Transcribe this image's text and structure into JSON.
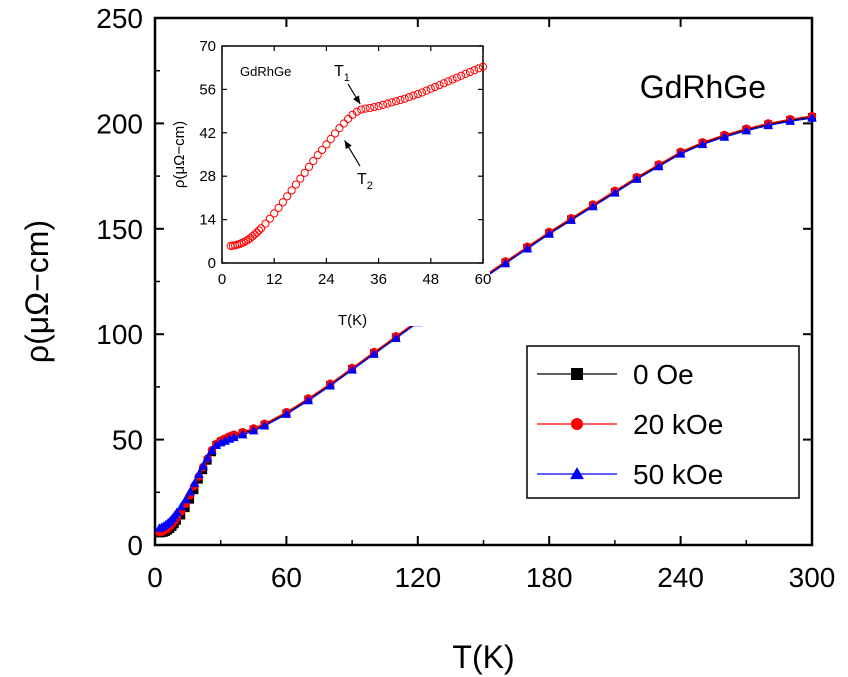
{
  "chart_data": [
    {
      "type": "scatter",
      "annotation": "GdRhGe",
      "xlabel": "T(K)",
      "ylabel": "ρ(μΩ−cm)",
      "xlim": [
        0,
        300
      ],
      "ylim": [
        0,
        250
      ],
      "xticks": [
        0,
        60,
        120,
        180,
        240,
        300
      ],
      "yticks": [
        0,
        50,
        100,
        150,
        200,
        250
      ],
      "grid": false,
      "legend_position": "bottom-right",
      "series": [
        {
          "name": "0 Oe",
          "color": "#000000",
          "marker": "square",
          "x": [
            2,
            3,
            4,
            5,
            6,
            7,
            8,
            9,
            10,
            12,
            14,
            16,
            18,
            20,
            22,
            24,
            26,
            28,
            30,
            31,
            32,
            34,
            36,
            40,
            45,
            50,
            60,
            70,
            80,
            90,
            100,
            110,
            120,
            130,
            140,
            150,
            160,
            170,
            180,
            190,
            200,
            210,
            220,
            230,
            240,
            250,
            260,
            270,
            280,
            290,
            300
          ],
          "y": [
            5.5,
            5.6,
            5.8,
            6.2,
            6.8,
            7.6,
            8.6,
            9.8,
            11.5,
            14,
            17.5,
            21.5,
            26,
            31,
            35.5,
            40,
            44,
            47.5,
            49,
            49.5,
            50,
            51,
            51.8,
            53,
            54.8,
            57,
            62.5,
            69,
            76,
            83.5,
            91,
            98.5,
            106,
            113,
            120,
            127,
            134,
            141,
            148,
            154.5,
            161,
            167.5,
            174,
            180,
            186,
            190.5,
            194,
            197,
            199.5,
            201.5,
            203
          ]
        },
        {
          "name": "20 kOe",
          "color": "#ff0000",
          "marker": "circle",
          "x": [
            2,
            3,
            4,
            5,
            6,
            7,
            8,
            9,
            10,
            12,
            14,
            16,
            18,
            20,
            22,
            24,
            26,
            28,
            30,
            32,
            34,
            36,
            40,
            45,
            50,
            60,
            70,
            80,
            90,
            100,
            110,
            120,
            130,
            140,
            150,
            160,
            170,
            180,
            190,
            200,
            210,
            220,
            230,
            240,
            250,
            260,
            270,
            280,
            290,
            300
          ],
          "y": [
            6,
            6.2,
            6.6,
            7.2,
            8,
            9,
            10.2,
            11.5,
            13,
            16,
            19.5,
            23.5,
            28,
            32.5,
            37,
            41,
            45,
            48,
            49.5,
            50.5,
            51.5,
            52.3,
            53.5,
            55.3,
            57.5,
            63,
            69.5,
            76.5,
            84,
            91.5,
            99,
            106.5,
            113.5,
            120.5,
            127.5,
            134.5,
            141.5,
            148.5,
            155,
            161.5,
            168,
            174.5,
            180.5,
            186.5,
            191,
            194.5,
            197.5,
            200,
            202,
            203.5
          ]
        },
        {
          "name": "50 kOe",
          "color": "#0000ff",
          "marker": "triangle",
          "x": [
            2,
            3,
            4,
            5,
            6,
            7,
            8,
            9,
            10,
            12,
            14,
            16,
            18,
            20,
            22,
            24,
            26,
            28,
            30,
            32,
            34,
            36,
            40,
            45,
            50,
            60,
            70,
            80,
            90,
            100,
            110,
            120,
            130,
            140,
            150,
            160,
            170,
            180,
            190,
            200,
            210,
            220,
            230,
            240,
            250,
            260,
            270,
            280,
            290,
            300
          ],
          "y": [
            8,
            8.4,
            9,
            9.7,
            10.5,
            11.5,
            12.7,
            14,
            15.5,
            18.2,
            21.5,
            25.2,
            29.3,
            33.5,
            37.5,
            41.3,
            44.8,
            47.3,
            48.5,
            49.3,
            50.2,
            51,
            52.3,
            54.2,
            56.5,
            62,
            68.5,
            75.5,
            83,
            90.5,
            98,
            105.5,
            112.5,
            119.5,
            126.5,
            133.5,
            140.5,
            147.5,
            154,
            160.5,
            167,
            173.5,
            179.5,
            185.5,
            190,
            193.5,
            196.5,
            199,
            201,
            202.5
          ]
        }
      ]
    },
    {
      "type": "scatter",
      "annotation": "GdRhGe",
      "xlabel": "T(K)",
      "ylabel": "ρ(μΩ−cm)",
      "xlim": [
        0,
        60
      ],
      "ylim": [
        0,
        70
      ],
      "xticks": [
        0,
        12,
        24,
        36,
        48,
        60
      ],
      "yticks": [
        0,
        14,
        28,
        42,
        56,
        70
      ],
      "grid": false,
      "annotations": [
        {
          "text": "T",
          "subscript": "1",
          "x": 32,
          "y": 50
        },
        {
          "text": "T",
          "subscript": "2",
          "x": 27.5,
          "y": 40.5
        }
      ],
      "series": [
        {
          "color": "#ff0000",
          "marker": "open-circle",
          "x": [
            2,
            2.5,
            3,
            3.5,
            4,
            4.5,
            5,
            5.5,
            6,
            6.5,
            7,
            7.5,
            8,
            8.5,
            9,
            10,
            11,
            12,
            13,
            14,
            15,
            16,
            17,
            18,
            19,
            20,
            21,
            22,
            23,
            24,
            25,
            26,
            27,
            28,
            29,
            30,
            31,
            32,
            33,
            34,
            35,
            36,
            37,
            38,
            39,
            40,
            41,
            42,
            43,
            44,
            45,
            46,
            47,
            48,
            49,
            50,
            51,
            52,
            53,
            54,
            55,
            56,
            57,
            58,
            59,
            60
          ],
          "y": [
            5.5,
            5.6,
            5.7,
            5.9,
            6.1,
            6.4,
            6.7,
            7.1,
            7.5,
            8,
            8.6,
            9.2,
            9.8,
            10.5,
            11.2,
            12.7,
            14.3,
            16,
            17.8,
            19.6,
            21.5,
            23.4,
            25.3,
            27.2,
            29.1,
            31,
            32.9,
            34.8,
            36.5,
            38.2,
            40,
            41.8,
            43.5,
            45,
            46.5,
            47.8,
            48.8,
            49.5,
            49.8,
            50,
            50.3,
            50.6,
            51,
            51.4,
            51.8,
            52.2,
            52.6,
            53,
            53.5,
            54,
            54.5,
            55,
            55.6,
            56.2,
            56.8,
            57.4,
            58,
            58.6,
            59.2,
            59.8,
            60.4,
            61,
            61.6,
            62.2,
            62.8,
            63.3
          ]
        }
      ]
    }
  ]
}
